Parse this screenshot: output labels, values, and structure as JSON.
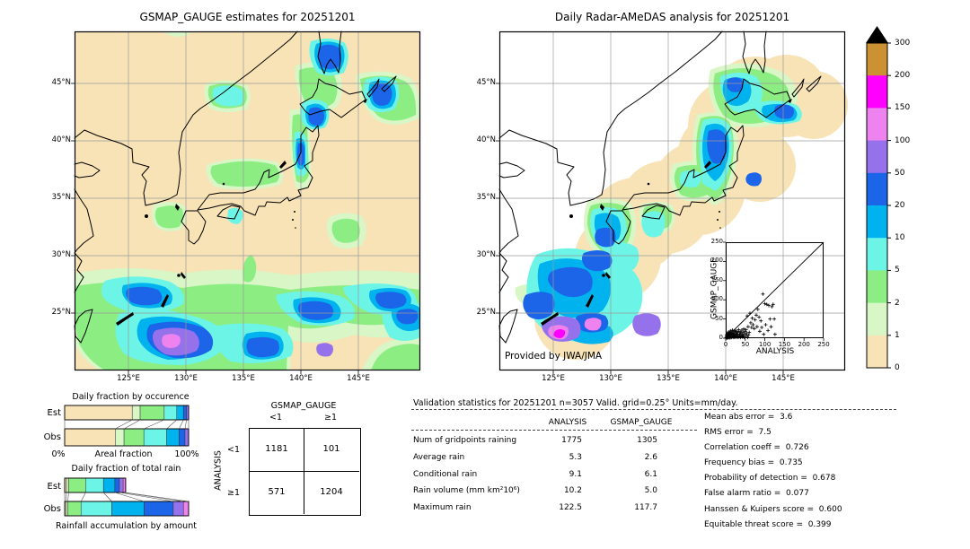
{
  "palette": {
    "tan": "#f8e3b6",
    "palegreen": "#d8f6c6",
    "green": "#8ced83",
    "cyan": "#6cf5e6",
    "skyblue": "#00b2ee",
    "blue": "#1c64e8",
    "purple": "#9671ec",
    "violet": "#ee82ee",
    "magenta": "#ff00ff",
    "goldenrod": "#cc9132"
  },
  "chart_data": [
    {
      "id": "map_left",
      "type": "map",
      "title": "GSMAP_GAUGE estimates for 20251201",
      "units": "mm/day",
      "x_ticks": [
        "125°E",
        "130°E",
        "135°E",
        "140°E",
        "145°E"
      ],
      "y_ticks": [
        "45°N",
        "40°N",
        "35°N",
        "30°N",
        "25°N"
      ]
    },
    {
      "id": "map_right",
      "type": "map",
      "title": "Daily Radar-AMeDAS analysis for 20251201",
      "units": "mm/day",
      "credit": "Provided by JWA/JMA",
      "x_ticks": [
        "125°E",
        "130°E",
        "135°E",
        "140°E",
        "145°E"
      ],
      "y_ticks": [
        "45°N",
        "40°N",
        "35°N",
        "30°N",
        "25°N"
      ]
    },
    {
      "id": "inset_scatter",
      "type": "scatter",
      "xlabel": "ANALYSIS",
      "ylabel": "GSMAP_GAUGE",
      "xlim": [
        0,
        250
      ],
      "ylim": [
        0,
        250
      ],
      "diagonal": true,
      "x_ticks": [
        "0",
        "50",
        "100",
        "150",
        "200",
        "250"
      ],
      "y_ticks": [
        "0",
        "50",
        "100",
        "150",
        "200",
        "250"
      ],
      "points": [
        [
          1,
          1
        ],
        [
          2,
          3
        ],
        [
          2,
          8
        ],
        [
          3,
          1
        ],
        [
          3,
          5
        ],
        [
          4,
          2
        ],
        [
          4,
          10
        ],
        [
          5,
          4
        ],
        [
          5,
          13
        ],
        [
          6,
          1
        ],
        [
          6,
          7
        ],
        [
          7,
          3
        ],
        [
          7,
          16
        ],
        [
          8,
          5
        ],
        [
          8,
          11
        ],
        [
          9,
          2
        ],
        [
          9,
          8
        ],
        [
          10,
          4
        ],
        [
          10,
          14
        ],
        [
          11,
          1
        ],
        [
          11,
          9
        ],
        [
          12,
          6
        ],
        [
          12,
          19
        ],
        [
          13,
          3
        ],
        [
          13,
          11
        ],
        [
          14,
          5
        ],
        [
          14,
          16
        ],
        [
          15,
          2
        ],
        [
          15,
          8
        ],
        [
          16,
          12
        ],
        [
          17,
          4
        ],
        [
          17,
          21
        ],
        [
          18,
          7
        ],
        [
          19,
          2
        ],
        [
          19,
          13
        ],
        [
          20,
          9
        ],
        [
          21,
          5
        ],
        [
          21,
          17
        ],
        [
          22,
          3
        ],
        [
          23,
          11
        ],
        [
          24,
          6
        ],
        [
          24,
          20
        ],
        [
          25,
          2
        ],
        [
          26,
          14
        ],
        [
          27,
          8
        ],
        [
          28,
          4
        ],
        [
          28,
          18
        ],
        [
          29,
          10
        ],
        [
          30,
          2
        ],
        [
          31,
          15
        ],
        [
          32,
          6
        ],
        [
          33,
          22
        ],
        [
          34,
          3
        ],
        [
          35,
          11
        ],
        [
          36,
          7
        ],
        [
          37,
          17
        ],
        [
          38,
          2
        ],
        [
          39,
          12
        ],
        [
          40,
          5
        ],
        [
          41,
          21
        ],
        [
          42,
          9
        ],
        [
          43,
          3
        ],
        [
          44,
          15
        ],
        [
          45,
          6
        ],
        [
          46,
          24
        ],
        [
          47,
          2
        ],
        [
          48,
          10
        ],
        [
          50,
          17
        ],
        [
          52,
          5
        ],
        [
          54,
          12
        ],
        [
          56,
          2
        ],
        [
          58,
          8
        ],
        [
          52,
          22
        ],
        [
          55,
          58
        ],
        [
          57,
          30
        ],
        [
          60,
          15
        ],
        [
          62,
          65
        ],
        [
          64,
          40
        ],
        [
          66,
          28
        ],
        [
          68,
          52
        ],
        [
          70,
          35
        ],
        [
          73,
          25
        ],
        [
          75,
          48
        ],
        [
          78,
          60
        ],
        [
          80,
          30
        ],
        [
          82,
          75
        ],
        [
          85,
          55
        ],
        [
          87,
          18
        ],
        [
          90,
          45
        ],
        [
          92,
          28
        ],
        [
          95,
          115
        ],
        [
          97,
          10
        ],
        [
          100,
          90
        ],
        [
          102,
          35
        ],
        [
          105,
          88
        ],
        [
          108,
          20
        ],
        [
          110,
          85
        ],
        [
          113,
          50
        ],
        [
          116,
          30
        ],
        [
          118,
          82
        ],
        [
          121,
          88
        ],
        [
          124,
          50
        ],
        [
          126,
          10
        ]
      ]
    },
    {
      "id": "occurrence",
      "type": "bar",
      "title": "Daily fraction by occurence",
      "xlabel": "Areal fraction",
      "x_min_label": "0%",
      "x_max_label": "100%",
      "categories": [
        "Est",
        "Obs"
      ],
      "rows": [
        {
          "label": "Est",
          "segments": [
            [
              "tan",
              54.5
            ],
            [
              "palegreen",
              6.4
            ],
            [
              "green",
              19.4
            ],
            [
              "cyan",
              10.1
            ],
            [
              "skyblue",
              5.4
            ],
            [
              "blue",
              2.5
            ],
            [
              "purple",
              1.7
            ]
          ]
        },
        {
          "label": "Obs",
          "segments": [
            [
              "tan",
              40.8
            ],
            [
              "palegreen",
              7.1
            ],
            [
              "green",
              16.0
            ],
            [
              "cyan",
              18.4
            ],
            [
              "skyblue",
              10.1
            ],
            [
              "blue",
              4.7
            ],
            [
              "purple",
              2.9
            ]
          ]
        }
      ]
    },
    {
      "id": "total_rain",
      "type": "bar",
      "title": "Daily fraction of total rain",
      "caption": "Rainfall accumulation by amount",
      "categories": [
        "Est",
        "Obs"
      ],
      "rows": [
        {
          "label": "Est",
          "segments": [
            [
              "tan",
              1.5
            ],
            [
              "palegreen",
              1.7
            ],
            [
              "green",
              13.7
            ],
            [
              "cyan",
              14.4
            ],
            [
              "skyblue",
              9.2
            ],
            [
              "blue",
              3.7
            ],
            [
              "purple",
              3.0
            ],
            [
              "violet",
              2.0
            ]
          ]
        },
        {
          "label": "Obs",
          "segments": [
            [
              "tan",
              1.0
            ],
            [
              "palegreen",
              1.5
            ],
            [
              "green",
              10.7
            ],
            [
              "cyan",
              24.8
            ],
            [
              "skyblue",
              26.1
            ],
            [
              "blue",
              23.5
            ],
            [
              "purple",
              8.2
            ],
            [
              "violet",
              4.2
            ]
          ]
        }
      ]
    },
    {
      "id": "contingency",
      "type": "table",
      "col_group": "GSMAP_GAUGE",
      "row_group": "ANALYSIS",
      "col_labels": [
        "<1",
        "≥1"
      ],
      "row_labels": [
        "<1",
        "≥1"
      ],
      "values": [
        [
          "1181",
          "101"
        ],
        [
          "571",
          "1204"
        ]
      ]
    },
    {
      "id": "validation_table",
      "type": "table",
      "title": "Validation statistics for 20251201  n=3057 Valid. grid=0.25° Units=mm/day.",
      "columns": [
        "ANALYSIS",
        "GSMAP_GAUGE"
      ],
      "rows": [
        {
          "label": "Num of gridpoints raining",
          "values": [
            "1775",
            "1305"
          ]
        },
        {
          "label": "Average rain",
          "values": [
            "5.3",
            "2.6"
          ]
        },
        {
          "label": "Conditional rain",
          "values": [
            "9.1",
            "6.1"
          ]
        },
        {
          "label": "Rain volume (mm km²10⁶)",
          "values": [
            "10.2",
            "5.0"
          ]
        },
        {
          "label": "Maximum rain",
          "values": [
            "122.5",
            "117.7"
          ]
        }
      ]
    },
    {
      "id": "summary_metrics",
      "type": "table",
      "rows": [
        {
          "label": "Mean abs error",
          "value": "3.6"
        },
        {
          "label": "RMS error",
          "value": "7.5"
        },
        {
          "label": "Correlation coeff",
          "value": "0.726"
        },
        {
          "label": "Frequency bias",
          "value": "0.735"
        },
        {
          "label": "Probability of detection",
          "value": "0.678"
        },
        {
          "label": "False alarm ratio",
          "value": "0.077"
        },
        {
          "label": "Hanssen & Kuipers score",
          "value": "0.600"
        },
        {
          "label": "Equitable threat score",
          "value": "0.399"
        }
      ]
    },
    {
      "id": "colorbar",
      "type": "legend",
      "labels": [
        "300",
        "200",
        "150",
        "100",
        "50",
        "20",
        "10",
        "5",
        "2",
        "1",
        "0"
      ],
      "colors": [
        "goldenrod",
        "magenta",
        "violet",
        "purple",
        "blue",
        "skyblue",
        "cyan",
        "green",
        "palegreen",
        "tan"
      ],
      "overflow_marker": "black-triangle"
    }
  ]
}
